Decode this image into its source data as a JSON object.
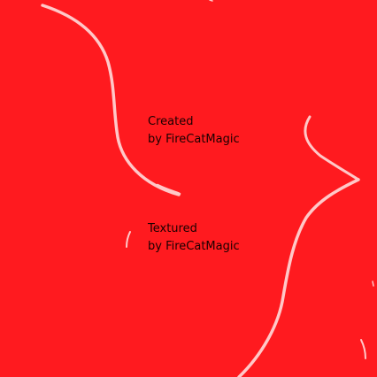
{
  "credits": {
    "created": {
      "line1": "Created",
      "line2": "by FireCatMagic"
    },
    "textured": {
      "line1": "Textured",
      "line2": "by FireCatMagic"
    }
  },
  "colors": {
    "background": "#ff1a1f",
    "stroke": "#ffc8c8",
    "text": "#1a0000"
  }
}
